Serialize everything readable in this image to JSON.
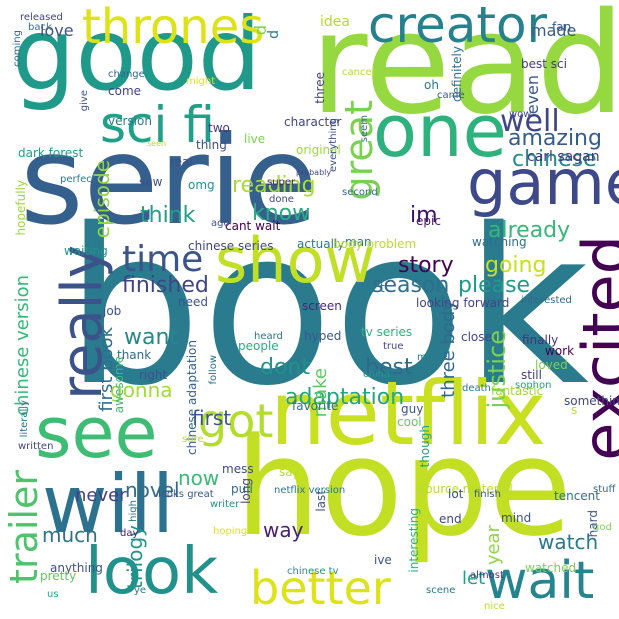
{
  "words": [
    {
      "t": "book",
      "c": "#2a7b8e"
    },
    {
      "t": "serie",
      "c": "#355f8d"
    },
    {
      "t": "read",
      "c": "#95d840"
    },
    {
      "t": "good",
      "c": "#1f9a8a"
    },
    {
      "t": "hope",
      "c": "#c2df23"
    },
    {
      "t": "netflix",
      "c": "#c8e020"
    },
    {
      "t": "one",
      "c": "#2db27d"
    },
    {
      "t": "will",
      "c": "#2c728e"
    },
    {
      "t": "game",
      "c": "#3e4989"
    },
    {
      "t": "look",
      "c": "#21918c"
    },
    {
      "t": "wait",
      "c": "#25858e"
    },
    {
      "t": "see",
      "c": "#3fbc73"
    },
    {
      "t": "thrones",
      "c": "#dde318"
    },
    {
      "t": "creator",
      "c": "#26818e"
    },
    {
      "t": "show",
      "c": "#c0df25"
    },
    {
      "t": "excited",
      "c": "#440154"
    },
    {
      "t": "sci fi",
      "c": "#1fa088"
    },
    {
      "t": "really",
      "c": "#3b528b"
    },
    {
      "t": "better",
      "c": "#dde318"
    },
    {
      "t": "trailer",
      "c": "#4ec36b"
    },
    {
      "t": "got",
      "c": "#b2dd2d"
    },
    {
      "t": "time",
      "c": "#3a548c"
    },
    {
      "t": "great",
      "c": "#7ad151"
    },
    {
      "t": "adaptation",
      "c": "#21a585"
    },
    {
      "t": "justice",
      "c": "#7ad151"
    },
    {
      "t": "game ",
      "c": "#3e4989"
    },
    {
      "t": "well",
      "c": "#414487"
    },
    {
      "t": "amazing",
      "c": "#365c8d"
    },
    {
      "t": "chinese",
      "c": "#238a8d"
    },
    {
      "t": "reading",
      "c": "#a8db34"
    },
    {
      "t": "know",
      "c": "#27ad81"
    },
    {
      "t": "think",
      "c": "#1f9e89"
    },
    {
      "t": "im",
      "c": "#3b0f70"
    },
    {
      "t": "already",
      "c": "#35b779"
    },
    {
      "t": "going",
      "c": "#c7e020"
    },
    {
      "t": "story",
      "c": "#440154"
    },
    {
      "t": "finished",
      "c": "#414487"
    },
    {
      "t": "season",
      "c": "#2e6e8e"
    },
    {
      "t": "please",
      "c": "#1f9a8a"
    },
    {
      "t": "episode",
      "c": "#90d743"
    },
    {
      "t": "first book",
      "c": "#2e6f8e"
    },
    {
      "t": "want",
      "c": "#23898e"
    },
    {
      "t": "dont",
      "c": "#21918c"
    },
    {
      "t": "best",
      "c": "#31688e"
    },
    {
      "t": "make",
      "c": "#5ec962"
    },
    {
      "t": "three body",
      "c": "#31688e"
    },
    {
      "t": "chinese version",
      "c": "#35b779"
    },
    {
      "t": "gonna",
      "c": "#9fda3a"
    },
    {
      "t": "first",
      "c": "#38588c"
    },
    {
      "t": "now",
      "c": "#3aba76"
    },
    {
      "t": "novel",
      "c": "#2f6c8e"
    },
    {
      "t": "never",
      "c": "#433e85"
    },
    {
      "t": "way",
      "c": "#482173"
    },
    {
      "t": "much",
      "c": "#2c738e"
    },
    {
      "t": "trilogy",
      "c": "#1f948c"
    },
    {
      "t": "watch",
      "c": "#2a788e"
    },
    {
      "t": "let",
      "c": "#1fa187"
    },
    {
      "t": "year",
      "c": "#8ed645"
    },
    {
      "t": "love",
      "c": "#3b528b"
    },
    {
      "t": "made",
      "c": "#355f8d"
    },
    {
      "t": "idea",
      "c": "#b5de2b"
    },
    {
      "t": "even",
      "c": "#39568c"
    },
    {
      "t": "carl sagan",
      "c": "#453781"
    },
    {
      "t": "hopefully",
      "c": "#9bd93c"
    },
    {
      "t": "dark forest",
      "c": "#1f9e89"
    },
    {
      "t": "version",
      "c": "#2a788e"
    },
    {
      "t": "come",
      "c": "#414487"
    },
    {
      "t": "two",
      "c": "#453781"
    },
    {
      "t": "thing",
      "c": "#3e4c8a"
    },
    {
      "t": "character",
      "c": "#414487"
    },
    {
      "t": "live",
      "c": "#7ad151"
    },
    {
      "t": "original",
      "c": "#a0da39"
    },
    {
      "t": "saw",
      "c": "#3b528b"
    },
    {
      "t": "omg",
      "c": "#21918c"
    },
    {
      "t": "cant wait",
      "c": "#440154"
    },
    {
      "t": "epic",
      "c": "#481a6c"
    },
    {
      "t": "watching",
      "c": "#2d708e"
    },
    {
      "t": "man",
      "c": "#2a788e"
    },
    {
      "t": "looking forward",
      "c": "#414487"
    },
    {
      "t": "actually",
      "c": "#2a788e"
    },
    {
      "t": "body problem",
      "c": "#b8de29"
    },
    {
      "t": "chinese series",
      "c": "#414487"
    },
    {
      "t": "waiting",
      "c": "#21918c"
    },
    {
      "t": "need",
      "c": "#3b528b"
    },
    {
      "t": "screen",
      "c": "#482878"
    },
    {
      "t": "hyped",
      "c": "#38598c"
    },
    {
      "t": "tv series",
      "c": "#2db27d"
    },
    {
      "t": "close",
      "c": "#404688"
    },
    {
      "t": "interested",
      "c": "#31688e"
    },
    {
      "t": "job",
      "c": "#3b528b"
    },
    {
      "t": "thank",
      "c": "#2f6b8e"
    },
    {
      "t": "awesome",
      "c": "#3bbb75"
    },
    {
      "t": "right",
      "c": "#3b528b"
    },
    {
      "t": "people",
      "c": "#29af7f"
    },
    {
      "t": "heard",
      "c": "#2d708e"
    },
    {
      "t": "true",
      "c": "#3f4788"
    },
    {
      "t": "china",
      "c": "#1f988b"
    },
    {
      "t": "chinese adaptation",
      "c": "#35608d"
    },
    {
      "t": "movie",
      "c": "#287d8e"
    },
    {
      "t": "work",
      "c": "#440154"
    },
    {
      "t": "finally",
      "c": "#46327e"
    },
    {
      "t": "loved",
      "c": "#7ad151"
    },
    {
      "t": "still",
      "c": "#433e85"
    },
    {
      "t": "sophon",
      "c": "#1fa188"
    },
    {
      "t": "favorite",
      "c": "#2d708e"
    },
    {
      "t": "guy",
      "c": "#3b528b"
    },
    {
      "t": "cool",
      "c": "#63cb5f"
    },
    {
      "t": "fantastic",
      "c": "#9fda3a"
    },
    {
      "t": "death",
      "c": "#2a788e"
    },
    {
      "t": "something",
      "c": "#3f4788"
    },
    {
      "t": "mess",
      "c": "#3e4989"
    },
    {
      "t": "say",
      "c": "#b8de29"
    },
    {
      "t": "netflix version",
      "c": "#2a788e"
    },
    {
      "t": "last",
      "c": "#3b528b"
    },
    {
      "t": "source material",
      "c": "#b8de29"
    },
    {
      "t": "though",
      "c": "#1fa088"
    },
    {
      "t": "lot",
      "c": "#3b528b"
    },
    {
      "t": "tencent",
      "c": "#2c738e"
    },
    {
      "t": "long",
      "c": "#404688"
    },
    {
      "t": "pull",
      "c": "#31688e"
    },
    {
      "t": "finish",
      "c": "#39568c"
    },
    {
      "t": "end",
      "c": "#404688"
    },
    {
      "t": "mind",
      "c": "#3b528b"
    },
    {
      "t": "hard",
      "c": "#3b528b"
    },
    {
      "t": "interesting",
      "c": "#2db27d"
    },
    {
      "t": "writer",
      "c": "#20928c"
    },
    {
      "t": "looks great",
      "c": "#39568c"
    },
    {
      "t": "high",
      "c": "#2c728e"
    },
    {
      "t": "day",
      "c": "#482173"
    },
    {
      "t": "written",
      "c": "#3f4788"
    },
    {
      "t": "literally",
      "c": "#2e6f8e"
    },
    {
      "t": "sure",
      "c": "#b8de29"
    },
    {
      "t": "hoping",
      "c": "#dde318"
    },
    {
      "t": "ive",
      "c": "#3b528b"
    },
    {
      "t": "chinese tv",
      "c": "#21918c"
    },
    {
      "t": "anything",
      "c": "#3b528b"
    },
    {
      "t": "pretty",
      "c": "#5ec962"
    },
    {
      "t": "us",
      "c": "#20a486"
    },
    {
      "t": "ye",
      "c": "#2a788e"
    },
    {
      "t": "almost",
      "c": "#46327e"
    },
    {
      "t": "scene",
      "c": "#2a788e"
    },
    {
      "t": "nice",
      "c": "#b8de29"
    },
    {
      "t": "watched",
      "c": "#7ad151"
    },
    {
      "t": "god",
      "c": "#84d44b"
    },
    {
      "t": "stuff",
      "c": "#31688e"
    },
    {
      "t": "released",
      "c": "#414487"
    },
    {
      "t": "back",
      "c": "#2a788e"
    },
    {
      "t": "coming",
      "c": "#31688e"
    },
    {
      "t": "d",
      "c": "#7ad151"
    },
    {
      "t": "d ",
      "c": "#2a788e"
    },
    {
      "t": "best sci",
      "c": "#453781"
    },
    {
      "t": "definitely",
      "c": "#2e6f8e"
    },
    {
      "t": "fan",
      "c": "#38588c"
    },
    {
      "t": "cancel",
      "c": "#b8de29"
    },
    {
      "t": "oh",
      "c": "#2a788e"
    },
    {
      "t": "came",
      "c": "#3b528b"
    },
    {
      "t": "change",
      "c": "#31688e"
    },
    {
      "t": "might",
      "c": "#dde318"
    },
    {
      "t": "give",
      "c": "#3b528b"
    },
    {
      "t": "three",
      "c": "#414487"
    },
    {
      "t": "wow",
      "c": "#3f4788"
    },
    {
      "t": "everything",
      "c": "#3b528b"
    },
    {
      "t": "seem",
      "c": "#31688e"
    },
    {
      "t": "seen",
      "c": "#b8de29"
    },
    {
      "t": "real",
      "c": "#3b528b"
    },
    {
      "t": "perfect",
      "c": "#2a788e"
    },
    {
      "t": "probably",
      "c": "#414487"
    },
    {
      "t": "second",
      "c": "#31688e"
    },
    {
      "t": "super",
      "c": "#482173"
    },
    {
      "t": "done",
      "c": "#3f4788"
    },
    {
      "t": "ago",
      "c": "#3b528b"
    },
    {
      "t": "follow",
      "c": "#2e6f8e"
    },
    {
      "t": "t",
      "c": "#31688e"
    },
    {
      "t": "s",
      "c": "#b8de29"
    }
  ]
}
